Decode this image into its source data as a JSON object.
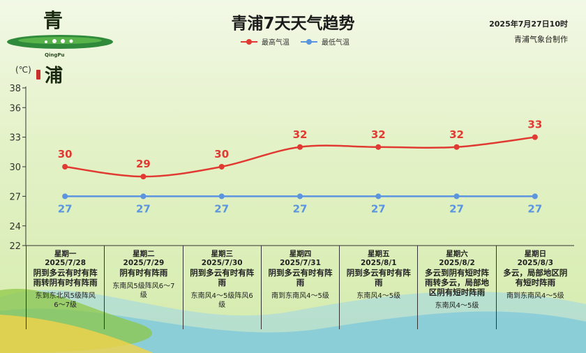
{
  "header": {
    "title": "青浦7天天气趋势",
    "date": "2025年7月27日10时",
    "source": "青浦气象台制作"
  },
  "logo": {
    "char_top": "青",
    "char_bottom": "浦",
    "subtitle": "QingPu"
  },
  "colors": {
    "high": "#e03a32",
    "low": "#5b95e0",
    "axis": "#333333"
  },
  "chart_data": {
    "type": "line",
    "title": "青浦7天天气趋势",
    "ylabel": "(℃)",
    "ylim": [
      22,
      38
    ],
    "yticks": [
      22,
      24,
      27,
      30,
      33,
      36,
      38
    ],
    "legend_position": "top-center",
    "grid": false,
    "categories": [
      "2025/7/28",
      "2025/7/29",
      "2025/7/30",
      "2025/7/31",
      "2025/8/1",
      "2025/8/2",
      "2025/8/3"
    ],
    "series": [
      {
        "name": "最高气温",
        "values": [
          30,
          29,
          30,
          32,
          32,
          32,
          33
        ]
      },
      {
        "name": "最低气温",
        "values": [
          27,
          27,
          27,
          27,
          27,
          27,
          27
        ]
      }
    ]
  },
  "days": [
    {
      "weekday": "星期一",
      "date": "2025/7/28",
      "weather": "阴到多云有时有阵雨转阴有时有阵雨",
      "wind": "东到东北风5级阵风6～7级"
    },
    {
      "weekday": "星期二",
      "date": "2025/7/29",
      "weather": "阴有时有阵雨",
      "wind": "东南风5级阵风6～7级"
    },
    {
      "weekday": "星期三",
      "date": "2025/7/30",
      "weather": "阴到多云有时有阵雨",
      "wind": "东南风4～5级阵风6级"
    },
    {
      "weekday": "星期四",
      "date": "2025/7/31",
      "weather": "阴到多云有时有阵雨",
      "wind": "南到东南风4～5级"
    },
    {
      "weekday": "星期五",
      "date": "2025/8/1",
      "weather": "阴到多云有时有阵雨",
      "wind": "东南风4～5级"
    },
    {
      "weekday": "星期六",
      "date": "2025/8/2",
      "weather": "多云到阴有短时阵雨转多云，局部地区阴有短时阵雨",
      "wind": "东南风4～5级"
    },
    {
      "weekday": "星期日",
      "date": "2025/8/3",
      "weather": "多云，局部地区阴有短时阵雨",
      "wind": "南到东南风4～5级"
    }
  ]
}
